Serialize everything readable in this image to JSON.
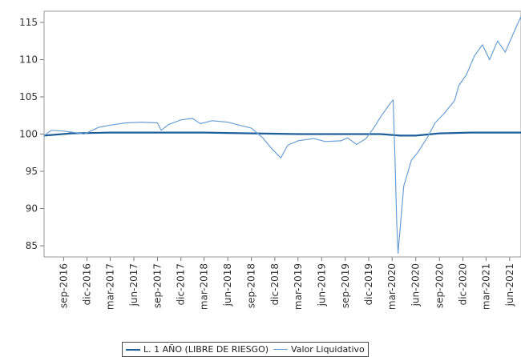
{
  "chart_data": {
    "type": "line",
    "title": "",
    "xlabel": "",
    "ylabel": "",
    "x_tick_labels": [
      "sep-2016",
      "dic-2016",
      "mar-2017",
      "jun-2017",
      "sep-2017",
      "dic-2017",
      "mar-2018",
      "jun-2018",
      "sep-2018",
      "dic-2018",
      "mar-2019",
      "jun-2019",
      "sep-2019",
      "dic-2019",
      "mar-2020",
      "jun-2020",
      "sep-2020",
      "dic-2020",
      "mar-2021",
      "jun-2021"
    ],
    "y_ticks": [
      85,
      90,
      95,
      100,
      105,
      110,
      115
    ],
    "xlim": [
      "2016-06-17",
      "2021-07-15"
    ],
    "ylim": [
      83.5,
      116.5
    ],
    "grid": false,
    "legend_position": "bottom",
    "series": [
      {
        "name": "L. 1 AÑO (LIBRE DE RIESGO)",
        "color": "#1f5f99",
        "x": [
          "2016-06-17",
          "2016-10-01",
          "2017-03-01",
          "2017-09-01",
          "2018-03-01",
          "2018-09-01",
          "2019-03-01",
          "2019-09-01",
          "2020-01-15",
          "2020-04-01",
          "2020-06-01",
          "2020-09-01",
          "2021-01-01",
          "2021-07-15"
        ],
        "values": [
          99.8,
          100.1,
          100.2,
          100.2,
          100.2,
          100.1,
          100.0,
          100.0,
          100.0,
          99.8,
          99.8,
          100.1,
          100.2,
          100.2
        ]
      },
      {
        "name": "Valor Liquidativo",
        "color": "#6b9fd4",
        "x": [
          "2016-06-17",
          "2016-07-15",
          "2016-09-01",
          "2016-10-15",
          "2016-11-20",
          "2017-01-15",
          "2017-03-01",
          "2017-05-01",
          "2017-07-01",
          "2017-09-01",
          "2017-09-15",
          "2017-10-15",
          "2017-12-01",
          "2018-01-15",
          "2018-02-15",
          "2018-04-01",
          "2018-06-01",
          "2018-07-15",
          "2018-09-01",
          "2018-10-15",
          "2018-11-20",
          "2018-12-24",
          "2019-01-20",
          "2019-03-01",
          "2019-05-01",
          "2019-06-15",
          "2019-08-15",
          "2019-09-10",
          "2019-10-15",
          "2019-11-20",
          "2019-12-20",
          "2020-01-20",
          "2020-02-20",
          "2020-03-05",
          "2020-03-12",
          "2020-03-19",
          "2020-03-24",
          "2020-04-15",
          "2020-05-15",
          "2020-06-08",
          "2020-07-15",
          "2020-08-15",
          "2020-09-20",
          "2020-10-30",
          "2020-11-15",
          "2020-12-15",
          "2021-01-15",
          "2021-02-15",
          "2021-03-15",
          "2021-04-15",
          "2021-05-15",
          "2021-06-15",
          "2021-07-15"
        ],
        "values": [
          99.8,
          100.5,
          100.4,
          100.2,
          100.0,
          100.9,
          101.2,
          101.5,
          101.6,
          101.5,
          100.5,
          101.3,
          101.9,
          102.1,
          101.4,
          101.8,
          101.6,
          101.2,
          100.8,
          99.5,
          98.0,
          96.8,
          98.5,
          99.1,
          99.4,
          99.0,
          99.1,
          99.5,
          98.6,
          99.4,
          100.8,
          102.5,
          104.0,
          104.6,
          97.0,
          88.0,
          84.0,
          93.0,
          96.5,
          97.5,
          99.5,
          101.5,
          102.8,
          104.5,
          106.5,
          108.0,
          110.5,
          112.0,
          110.0,
          112.5,
          111.0,
          113.5,
          115.8
        ]
      }
    ]
  }
}
